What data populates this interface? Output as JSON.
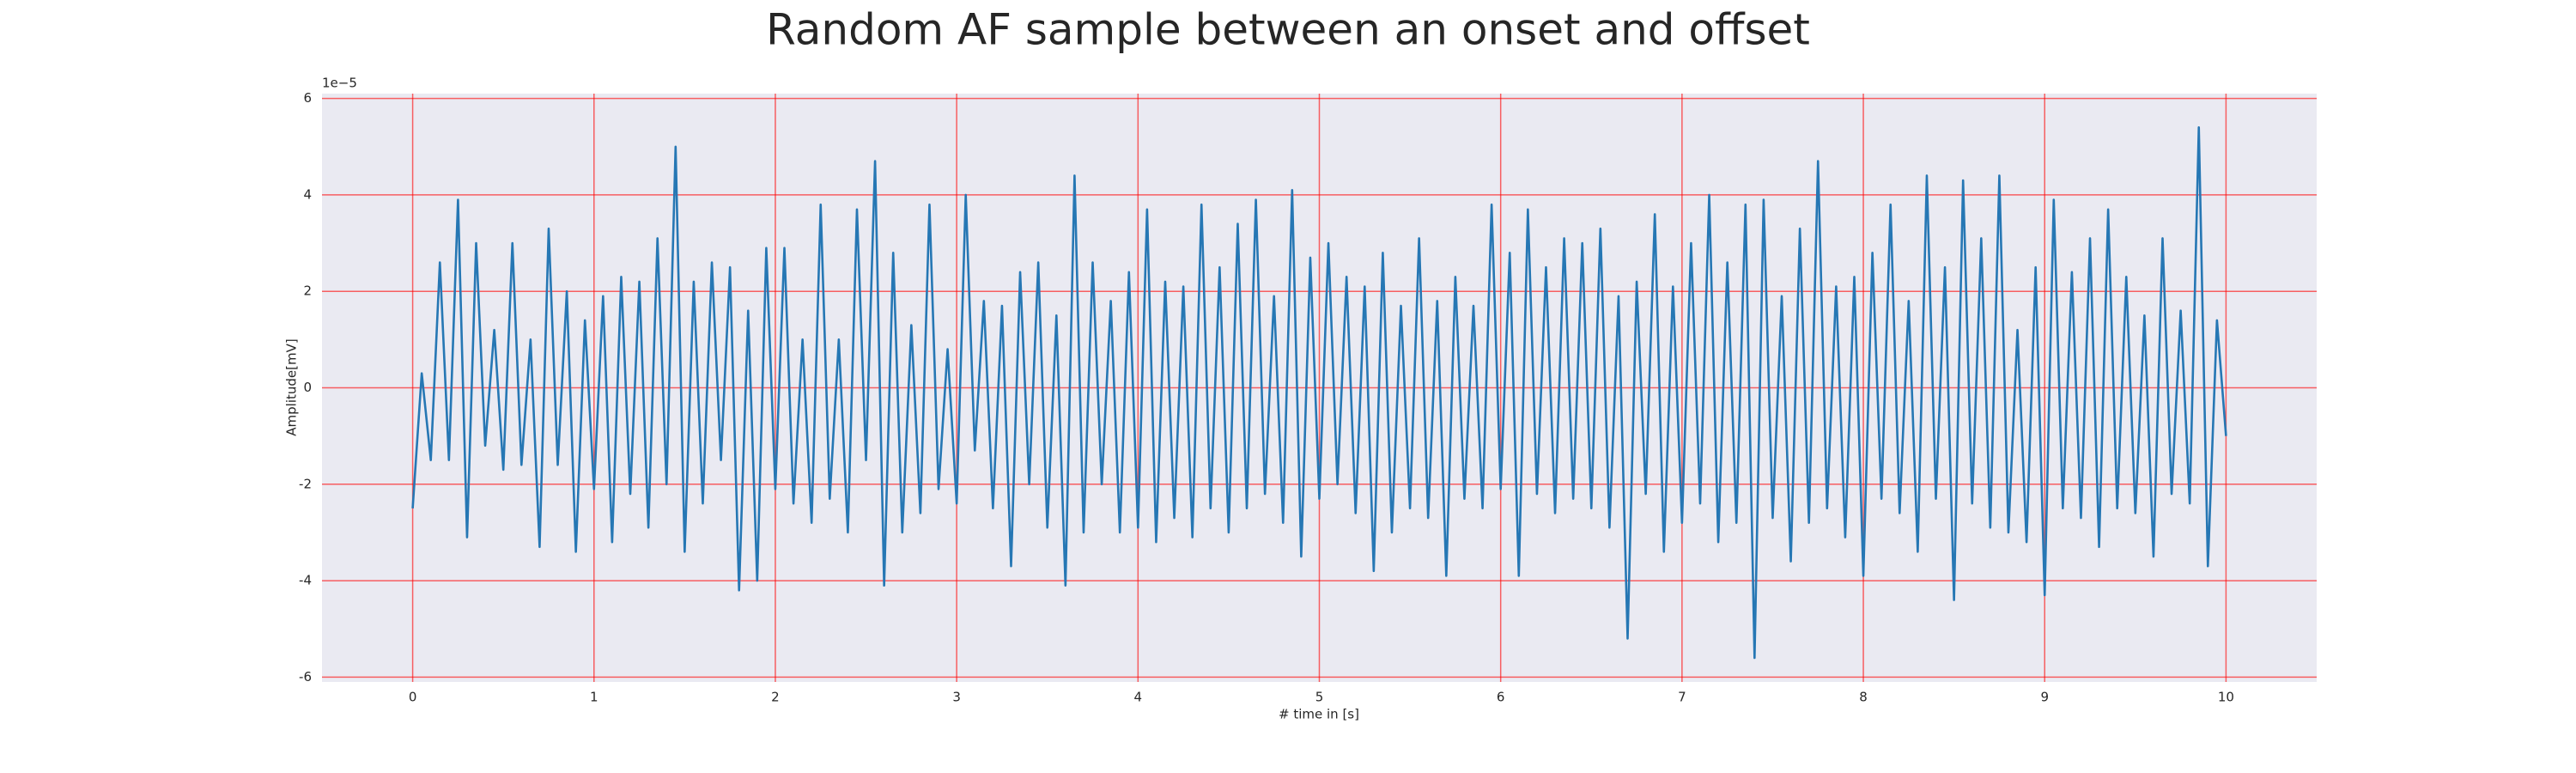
{
  "chart_data": {
    "type": "line",
    "title": "Random AF sample between an onset and offset",
    "xlabel": "# time in [s]",
    "ylabel": "Amplitude[mV]",
    "y_offset_label": "1e−5",
    "xlim": [
      -0.5,
      10.5
    ],
    "ylim": [
      -6.1,
      6.1
    ],
    "xticks": [
      0,
      1,
      2,
      3,
      4,
      5,
      6,
      7,
      8,
      9,
      10
    ],
    "yticks": [
      -6,
      -4,
      -2,
      0,
      2,
      4,
      6
    ],
    "grid": true,
    "grid_color": "#ff0000",
    "background": "#eaeaf2",
    "x": [
      0,
      0.05,
      0.1,
      0.15,
      0.2,
      0.25,
      0.3,
      0.35,
      0.4,
      0.45,
      0.5,
      0.55,
      0.6,
      0.65,
      0.7,
      0.75,
      0.8,
      0.85,
      0.9,
      0.95,
      1,
      1.05,
      1.1,
      1.15,
      1.2,
      1.25,
      1.3,
      1.35,
      1.4,
      1.45,
      1.5,
      1.55,
      1.6,
      1.65,
      1.7,
      1.75,
      1.8,
      1.85,
      1.9,
      1.95,
      2,
      2.05,
      2.1,
      2.15,
      2.2,
      2.25,
      2.3,
      2.35,
      2.4,
      2.45,
      2.5,
      2.55,
      2.6,
      2.65,
      2.7,
      2.75,
      2.8,
      2.85,
      2.9,
      2.95,
      3,
      3.05,
      3.1,
      3.15,
      3.2,
      3.25,
      3.3,
      3.35,
      3.4,
      3.45,
      3.5,
      3.55,
      3.6,
      3.65,
      3.7,
      3.75,
      3.8,
      3.85,
      3.9,
      3.95,
      4,
      4.05,
      4.1,
      4.15,
      4.2,
      4.25,
      4.3,
      4.35,
      4.4,
      4.45,
      4.5,
      4.55,
      4.6,
      4.65,
      4.7,
      4.75,
      4.8,
      4.85,
      4.9,
      4.95,
      5,
      5.05,
      5.1,
      5.15,
      5.2,
      5.25,
      5.3,
      5.35,
      5.4,
      5.45,
      5.5,
      5.55,
      5.6,
      5.65,
      5.7,
      5.75,
      5.8,
      5.85,
      5.9,
      5.95,
      6,
      6.05,
      6.1,
      6.15,
      6.2,
      6.25,
      6.3,
      6.35,
      6.4,
      6.45,
      6.5,
      6.55,
      6.6,
      6.65,
      6.7,
      6.75,
      6.8,
      6.85,
      6.9,
      6.95,
      7,
      7.05,
      7.1,
      7.15,
      7.2,
      7.25,
      7.3,
      7.35,
      7.4,
      7.45,
      7.5,
      7.55,
      7.6,
      7.65,
      7.7,
      7.75,
      7.8,
      7.85,
      7.9,
      7.95,
      8,
      8.05,
      8.1,
      8.15,
      8.2,
      8.25,
      8.3,
      8.35,
      8.4,
      8.45,
      8.5,
      8.55,
      8.6,
      8.65,
      8.7,
      8.75,
      8.8,
      8.85,
      8.9,
      8.95,
      9,
      9.05,
      9.1,
      9.15,
      9.2,
      9.25,
      9.3,
      9.35,
      9.4,
      9.45,
      9.5,
      9.55,
      9.6,
      9.65,
      9.7,
      9.75,
      9.8,
      9.85,
      9.9,
      9.95,
      10
    ],
    "series": [
      {
        "color": "#2677b4",
        "values": [
          -2.5,
          0.3,
          -1.5,
          2.6,
          -1.5,
          3.9,
          -3.1,
          3.0,
          -1.2,
          1.2,
          -1.7,
          3.0,
          -1.6,
          1.0,
          -3.3,
          3.3,
          -1.6,
          2.0,
          -3.4,
          1.4,
          -2.1,
          1.9,
          -3.2,
          2.3,
          -2.2,
          2.2,
          -2.9,
          3.1,
          -2.0,
          5.0,
          -3.4,
          2.2,
          -2.4,
          2.6,
          -1.5,
          2.5,
          -4.2,
          1.6,
          -4.0,
          2.9,
          -2.1,
          2.9,
          -2.4,
          1.0,
          -2.8,
          3.8,
          -2.3,
          1.0,
          -3.0,
          3.7,
          -1.5,
          4.7,
          -4.1,
          2.8,
          -3.0,
          1.3,
          -2.6,
          3.8,
          -2.1,
          0.8,
          -2.4,
          4.0,
          -1.3,
          1.8,
          -2.5,
          1.7,
          -3.7,
          2.4,
          -2.0,
          2.6,
          -2.9,
          1.5,
          -4.1,
          4.4,
          -3.0,
          2.6,
          -2.0,
          1.8,
          -3.0,
          2.4,
          -2.9,
          3.7,
          -3.2,
          2.2,
          -2.7,
          2.1,
          -3.1,
          3.8,
          -2.5,
          2.5,
          -3.0,
          3.4,
          -2.5,
          3.9,
          -2.2,
          1.9,
          -2.8,
          4.1,
          -3.5,
          2.7,
          -2.3,
          3.0,
          -2.0,
          2.3,
          -2.6,
          2.1,
          -3.8,
          2.8,
          -3.0,
          1.7,
          -2.5,
          3.1,
          -2.7,
          1.8,
          -3.9,
          2.3,
          -2.3,
          1.7,
          -2.5,
          3.8,
          -2.1,
          2.8,
          -3.9,
          3.7,
          -2.2,
          2.5,
          -2.6,
          3.1,
          -2.3,
          3.0,
          -2.5,
          3.3,
          -2.9,
          1.9,
          -5.2,
          2.2,
          -2.2,
          3.6,
          -3.4,
          2.1,
          -2.8,
          3.0,
          -2.4,
          4.0,
          -3.2,
          2.6,
          -2.8,
          3.8,
          -5.6,
          3.9,
          -2.7,
          1.9,
          -3.6,
          3.3,
          -2.8,
          4.7,
          -2.5,
          2.1,
          -3.1,
          2.3,
          -3.9,
          2.8,
          -2.3,
          3.8,
          -2.6,
          1.8,
          -3.4,
          4.4,
          -2.3,
          2.5,
          -4.4,
          4.3,
          -2.4,
          3.1,
          -2.9,
          4.4,
          -3.0,
          1.2,
          -3.2,
          2.5,
          -4.3,
          3.9,
          -2.5,
          2.4,
          -2.7,
          3.1,
          -3.3,
          3.7,
          -2.5,
          2.3,
          -2.6,
          1.5,
          -3.5,
          3.1,
          -2.2,
          1.6,
          -2.4,
          5.4,
          -3.7,
          1.4,
          -1.0
        ]
      }
    ]
  }
}
